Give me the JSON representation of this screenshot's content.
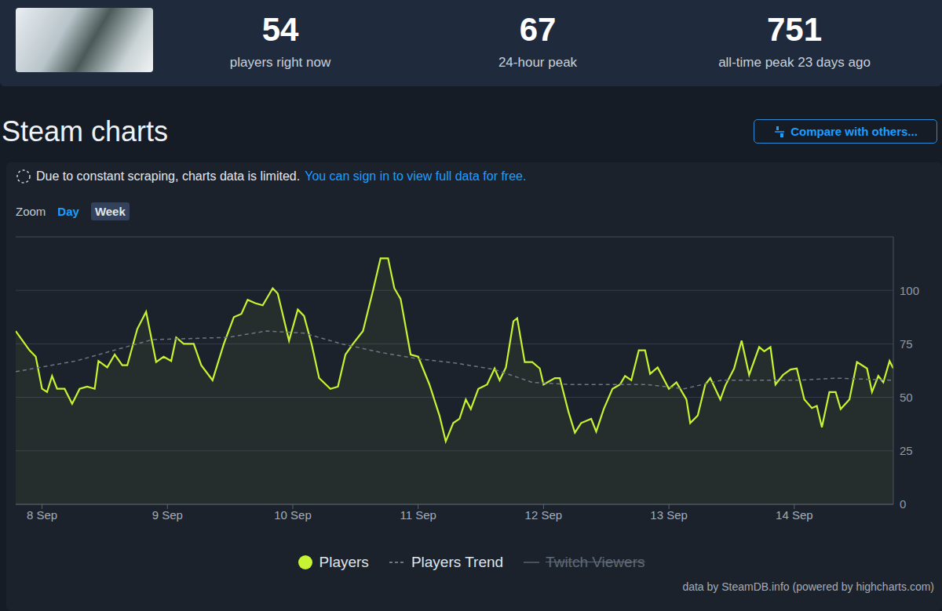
{
  "header": {
    "stats": [
      {
        "value": 54,
        "label": "players right now"
      },
      {
        "value": 67,
        "label": "24-hour peak"
      },
      {
        "value": 751,
        "label": "all-time peak 23 days ago"
      }
    ]
  },
  "page": {
    "title": "Steam charts",
    "button": "Compare with others...",
    "notice": "Due to constant scraping, charts data is limited.",
    "notice_link": "You can sign in to view full data for free.",
    "zoom_label": "Zoom",
    "zoom_options": [
      "Day",
      "Week"
    ],
    "zoom_selected": "Week",
    "hidden_legend_entries": [
      "Twitch Viewers"
    ],
    "credit": "data by SteamDB.info (powered by highcharts.com)"
  },
  "chart_data": {
    "type": "line",
    "series": [
      {
        "name": "Players",
        "color": "#c6f432",
        "line_style": "solid",
        "x": [
          7.79,
          7.9,
          7.95,
          8.0,
          8.04,
          8.08,
          8.12,
          8.18,
          8.24,
          8.3,
          8.36,
          8.42,
          8.45,
          8.52,
          8.58,
          8.64,
          8.68,
          8.76,
          8.83,
          8.91,
          8.97,
          9.03,
          9.07,
          9.13,
          9.21,
          9.27,
          9.36,
          9.45,
          9.53,
          9.59,
          9.64,
          9.7,
          9.76,
          9.84,
          9.88,
          9.97,
          10.04,
          10.09,
          10.15,
          10.21,
          10.3,
          10.36,
          10.42,
          10.48,
          10.56,
          10.64,
          10.7,
          10.76,
          10.81,
          10.86,
          10.94,
          11.0,
          11.09,
          11.17,
          11.22,
          11.28,
          11.33,
          11.38,
          11.42,
          11.48,
          11.55,
          11.61,
          11.65,
          11.7,
          11.76,
          11.79,
          11.85,
          11.91,
          11.97,
          12.0,
          12.09,
          12.13,
          12.2,
          12.25,
          12.3,
          12.38,
          12.42,
          12.48,
          12.55,
          12.61,
          12.65,
          12.7,
          12.76,
          12.81,
          12.85,
          12.91,
          13.0,
          13.06,
          13.14,
          13.17,
          13.23,
          13.29,
          13.33,
          13.41,
          13.45,
          13.52,
          13.58,
          13.64,
          13.72,
          13.76,
          13.81,
          13.85,
          13.91,
          13.97,
          14.02,
          14.08,
          14.14,
          14.18,
          14.22,
          14.28,
          14.33,
          14.37,
          14.44,
          14.5,
          14.58,
          14.62,
          14.67,
          14.71,
          14.76,
          14.79
        ],
        "values": [
          81,
          72,
          69,
          54,
          52.5,
          60,
          54,
          54,
          47,
          54,
          55,
          54,
          67,
          64,
          70,
          65,
          65,
          82,
          90,
          66.5,
          69,
          67,
          78,
          75,
          75,
          65,
          58,
          75,
          87.5,
          89,
          95.6,
          94,
          93,
          101,
          98.5,
          76.5,
          91,
          88,
          75,
          59,
          54,
          55,
          70,
          75,
          81,
          100,
          115,
          115,
          101,
          96,
          70,
          69,
          56,
          41.5,
          29.4,
          38,
          40,
          49,
          44.5,
          54,
          56,
          63.5,
          58,
          64,
          85.6,
          87,
          66.5,
          66.5,
          63.5,
          56,
          59,
          59,
          43,
          33.5,
          38,
          40,
          34,
          44.5,
          54,
          56,
          60,
          58,
          72,
          72,
          61,
          64,
          54,
          57,
          49,
          38,
          41.5,
          56,
          59,
          49,
          55.5,
          63.5,
          76.5,
          60.5,
          73.5,
          71.5,
          73.5,
          56,
          60.5,
          63,
          63.5,
          49,
          45,
          46,
          36,
          52.5,
          52.5,
          44.5,
          49,
          66.5,
          63.5,
          52.5,
          60,
          57,
          67,
          63.5
        ]
      },
      {
        "name": "Players Trend",
        "color": "#6e7681",
        "line_style": "dashed",
        "x": [
          7.79,
          8.27,
          8.88,
          9.48,
          9.79,
          10.09,
          10.39,
          10.7,
          11.0,
          11.3,
          11.61,
          11.91,
          12.21,
          12.52,
          12.82,
          13.12,
          13.42,
          13.73,
          14.03,
          14.33,
          14.79
        ],
        "values": [
          62,
          67,
          77,
          78,
          81,
          80,
          75,
          71,
          68,
          66,
          63,
          57,
          56,
          56,
          56,
          54,
          58,
          58,
          58,
          59,
          58
        ]
      }
    ],
    "xlim": [
      7.79,
      14.79
    ],
    "xticks": [
      {
        "value": 8,
        "label": "8 Sep"
      },
      {
        "value": 9,
        "label": "9 Sep"
      },
      {
        "value": 10,
        "label": "10 Sep"
      },
      {
        "value": 11,
        "label": "11 Sep"
      },
      {
        "value": 12,
        "label": "12 Sep"
      },
      {
        "value": 13,
        "label": "13 Sep"
      },
      {
        "value": 14,
        "label": "14 Sep"
      }
    ],
    "ylim": [
      0,
      125
    ],
    "yticks": [
      0,
      25,
      50,
      75,
      100
    ],
    "grid": true,
    "legend": "bottom"
  }
}
